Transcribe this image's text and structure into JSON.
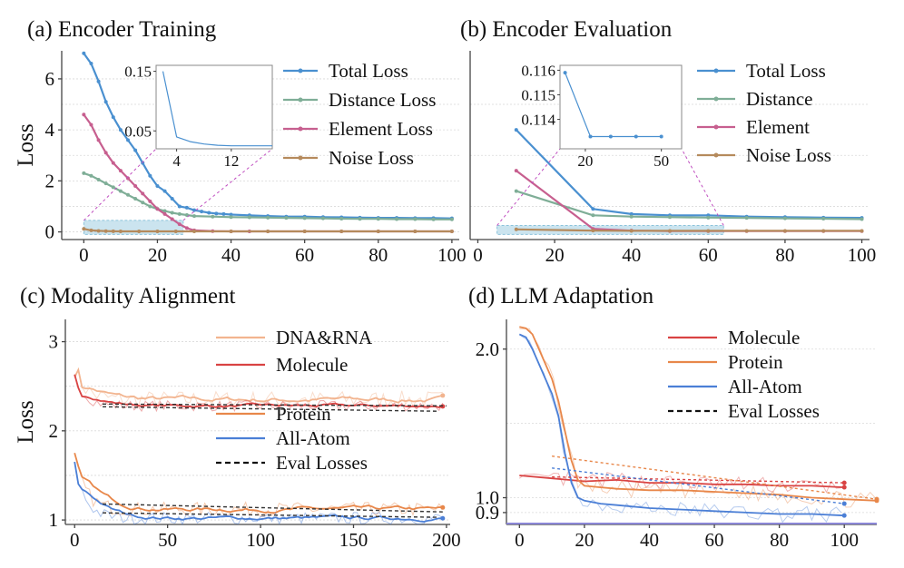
{
  "colors": {
    "total": "#4a90d0",
    "distance": "#7fae97",
    "element": "#c75f8f",
    "noise": "#b58a5c",
    "dna": "#f2b48f",
    "molecule": "#d94343",
    "protein": "#e8874a",
    "allatom": "#4b7fd6",
    "eval": "#111111",
    "zoom": "#c04ec0",
    "highlight": "#8cc3db"
  },
  "chart_data": [
    {
      "id": "a",
      "type": "line",
      "title": "(a) Encoder Training",
      "xlabel": "",
      "ylabel": "Loss",
      "xlim": [
        -6,
        102
      ],
      "ylim": [
        -0.3,
        7.1
      ],
      "xticks": [
        0,
        20,
        40,
        60,
        80,
        100
      ],
      "yticks": [
        0,
        2,
        4,
        6
      ],
      "legend": [
        "Total Loss",
        "Distance Loss",
        "Element Loss",
        "Noise Loss"
      ],
      "series": [
        {
          "name": "Total Loss",
          "x": [
            0,
            2,
            4,
            6,
            8,
            10,
            12,
            14,
            16,
            18,
            20,
            22,
            24,
            26,
            28,
            30,
            32,
            34,
            36,
            38,
            40,
            45,
            50,
            55,
            60,
            65,
            70,
            75,
            80,
            85,
            90,
            95,
            100
          ],
          "values": [
            7.0,
            6.6,
            5.9,
            5.1,
            4.5,
            4.0,
            3.6,
            3.2,
            2.7,
            2.2,
            1.8,
            1.6,
            1.3,
            1.0,
            0.95,
            0.85,
            0.8,
            0.75,
            0.72,
            0.7,
            0.68,
            0.65,
            0.62,
            0.6,
            0.6,
            0.58,
            0.57,
            0.56,
            0.55,
            0.55,
            0.54,
            0.54,
            0.53
          ]
        },
        {
          "name": "Distance Loss",
          "x": [
            0,
            2,
            4,
            6,
            8,
            10,
            12,
            14,
            16,
            18,
            20,
            22,
            24,
            26,
            28,
            30,
            35,
            40,
            45,
            50,
            55,
            60,
            65,
            70,
            75,
            80,
            85,
            90,
            95,
            100
          ],
          "values": [
            2.3,
            2.2,
            2.05,
            1.9,
            1.75,
            1.6,
            1.45,
            1.3,
            1.15,
            1.0,
            0.9,
            0.82,
            0.75,
            0.7,
            0.66,
            0.62,
            0.6,
            0.58,
            0.57,
            0.56,
            0.55,
            0.54,
            0.53,
            0.52,
            0.51,
            0.51,
            0.5,
            0.5,
            0.49,
            0.49
          ]
        },
        {
          "name": "Element Loss",
          "x": [
            0,
            2,
            4,
            6,
            8,
            10,
            12,
            14,
            16,
            18,
            20,
            22,
            24,
            26,
            28,
            30,
            35,
            40,
            45,
            50,
            60,
            70,
            80,
            90,
            100
          ],
          "values": [
            4.6,
            4.2,
            3.6,
            3.1,
            2.7,
            2.4,
            2.1,
            1.8,
            1.5,
            1.2,
            0.9,
            0.7,
            0.5,
            0.3,
            0.15,
            0.06,
            0.03,
            0.02,
            0.02,
            0.02,
            0.02,
            0.02,
            0.02,
            0.02,
            0.02
          ]
        },
        {
          "name": "Noise Loss",
          "x": [
            0,
            2,
            4,
            6,
            8,
            10,
            15,
            20,
            25,
            30,
            40,
            50,
            60,
            70,
            80,
            90,
            100
          ],
          "values": [
            0.12,
            0.06,
            0.04,
            0.03,
            0.025,
            0.02,
            0.02,
            0.02,
            0.02,
            0.02,
            0.02,
            0.02,
            0.02,
            0.02,
            0.02,
            0.02,
            0.02
          ]
        }
      ],
      "inset": {
        "xlim": [
          1,
          18
        ],
        "ylim": [
          0.02,
          0.16
        ],
        "xticks": [
          4,
          12
        ],
        "xtick_labels": [
          "4",
          "12"
        ],
        "yticks": [
          0.05,
          0.15
        ],
        "ytick_labels": [
          "0.05",
          "0.15"
        ],
        "x": [
          2,
          4,
          6,
          8,
          10,
          12,
          14,
          16,
          18
        ],
        "values": [
          0.15,
          0.04,
          0.032,
          0.028,
          0.026,
          0.025,
          0.025,
          0.025,
          0.025
        ],
        "highlight_x": [
          0,
          27
        ],
        "highlight_y": [
          -0.1,
          0.45
        ]
      }
    },
    {
      "id": "b",
      "type": "line",
      "title": "(b) Encoder Evaluation",
      "xlabel": "",
      "ylabel": "",
      "xlim": [
        -2,
        102
      ],
      "ylim": [
        -0.3,
        7.1
      ],
      "xticks": [
        0,
        20,
        40,
        60,
        80,
        100
      ],
      "yticks": [],
      "legend": [
        "Total Loss",
        "Distance",
        "Element",
        "Noise Loss"
      ],
      "series": [
        {
          "name": "Total Loss",
          "x": [
            10,
            30,
            40,
            50,
            60,
            70,
            80,
            90,
            100
          ],
          "values": [
            4.0,
            0.9,
            0.7,
            0.65,
            0.65,
            0.6,
            0.58,
            0.56,
            0.55
          ]
        },
        {
          "name": "Distance",
          "x": [
            10,
            30,
            40,
            50,
            60,
            70,
            80,
            90,
            100
          ],
          "values": [
            1.6,
            0.65,
            0.6,
            0.58,
            0.56,
            0.55,
            0.53,
            0.52,
            0.5
          ]
        },
        {
          "name": "Element",
          "x": [
            10,
            30,
            40,
            50,
            60,
            70,
            80,
            90,
            100
          ],
          "values": [
            2.4,
            0.12,
            0.05,
            0.03,
            0.03,
            0.03,
            0.03,
            0.03,
            0.03
          ]
        },
        {
          "name": "Noise Loss",
          "x": [
            10,
            30,
            40,
            50,
            60,
            70,
            80,
            90,
            100
          ],
          "values": [
            0.1,
            0.05,
            0.04,
            0.04,
            0.04,
            0.04,
            0.04,
            0.04,
            0.04
          ]
        }
      ],
      "inset": {
        "xlim": [
          10,
          58
        ],
        "ylim": [
          0.1128,
          0.1162
        ],
        "xticks": [
          20,
          50
        ],
        "xtick_labels": [
          "20",
          "50"
        ],
        "yticks": [
          0.114,
          0.115,
          0.116
        ],
        "ytick_labels": [
          "0.114",
          "0.115",
          "0.116"
        ],
        "x": [
          12,
          22,
          30,
          40,
          50
        ],
        "values": [
          0.1159,
          0.1133,
          0.1133,
          0.1133,
          0.1133
        ],
        "highlight_x": [
          5,
          64
        ],
        "highlight_y": [
          -0.1,
          0.25
        ]
      }
    },
    {
      "id": "c",
      "type": "line",
      "title": "(c) Modality Alignment",
      "xlabel": "",
      "ylabel": "Loss",
      "xlim": [
        -5,
        202
      ],
      "ylim": [
        0.95,
        3.25
      ],
      "xticks": [
        0,
        50,
        100,
        150,
        200
      ],
      "yticks": [
        1,
        2,
        3
      ],
      "legend": [
        "DNA&RNA",
        "Molecule",
        "Protein",
        "All-Atom",
        "Eval Losses"
      ],
      "series": [
        {
          "name": "DNA&RNA",
          "base": 2.35,
          "start": 2.7,
          "noise": 0.1
        },
        {
          "name": "Molecule",
          "base": 2.28,
          "start": 2.6,
          "noise": 0.06
        },
        {
          "name": "Protein",
          "base": 1.12,
          "start": 1.7,
          "noise": 0.08
        },
        {
          "name": "All-Atom",
          "base": 1.02,
          "start": 1.6,
          "noise": 0.07
        }
      ],
      "eval_series": [
        {
          "name": "DNA&RNA",
          "x": [
            15,
            200
          ],
          "values": [
            2.3,
            2.28
          ]
        },
        {
          "name": "Molecule",
          "x": [
            15,
            195
          ],
          "values": [
            2.27,
            2.22
          ]
        },
        {
          "name": "Protein",
          "x": [
            15,
            198
          ],
          "values": [
            1.18,
            1.09
          ]
        },
        {
          "name": "All-Atom",
          "x": [
            15,
            195
          ],
          "values": [
            1.08,
            1.03
          ]
        }
      ]
    },
    {
      "id": "d",
      "type": "line",
      "title": "(d) LLM Adaptation",
      "xlabel": "",
      "ylabel": "",
      "xlim": [
        -4,
        110
      ],
      "ylim": [
        0.82,
        2.2
      ],
      "xticks": [
        0,
        20,
        40,
        60,
        80,
        100
      ],
      "yticks": [
        0.9,
        1.0,
        2.0
      ],
      "ytick_labels": [
        "0.9",
        "1.0",
        "2.0"
      ],
      "legend": [
        "Molecule",
        "Protein",
        "All-Atom",
        "Eval Losses"
      ],
      "series": [
        {
          "name": "Molecule",
          "x": [
            0,
            10,
            20,
            30,
            40,
            50,
            60,
            70,
            80,
            90,
            100
          ],
          "values": [
            1.15,
            1.13,
            1.11,
            1.12,
            1.1,
            1.1,
            1.09,
            1.09,
            1.08,
            1.08,
            1.07
          ]
        },
        {
          "name": "Protein",
          "x": [
            0,
            2,
            4,
            6,
            8,
            10,
            12,
            14,
            16,
            18,
            20,
            25,
            30,
            40,
            50,
            60,
            70,
            80,
            90,
            100,
            110
          ],
          "values": [
            2.15,
            2.14,
            2.1,
            2.0,
            1.9,
            1.8,
            1.65,
            1.45,
            1.25,
            1.12,
            1.08,
            1.07,
            1.06,
            1.05,
            1.05,
            1.04,
            1.03,
            1.02,
            1.0,
            0.99,
            0.98
          ]
        },
        {
          "name": "All-Atom",
          "x": [
            0,
            2,
            4,
            6,
            8,
            10,
            12,
            14,
            16,
            18,
            20,
            25,
            30,
            40,
            50,
            60,
            70,
            80,
            90,
            100
          ],
          "values": [
            2.1,
            2.08,
            2.0,
            1.9,
            1.8,
            1.7,
            1.55,
            1.3,
            1.1,
            1.0,
            0.98,
            0.96,
            0.95,
            0.93,
            0.92,
            0.91,
            0.9,
            0.89,
            0.89,
            0.88
          ]
        }
      ],
      "eval_series": [
        {
          "name": "Molecule",
          "x": [
            10,
            100
          ],
          "values": [
            1.14,
            1.1
          ]
        },
        {
          "name": "Protein",
          "x": [
            10,
            110
          ],
          "values": [
            1.28,
            0.99
          ]
        },
        {
          "name": "All-Atom",
          "x": [
            10,
            100
          ],
          "values": [
            1.2,
            0.96
          ]
        }
      ]
    }
  ]
}
